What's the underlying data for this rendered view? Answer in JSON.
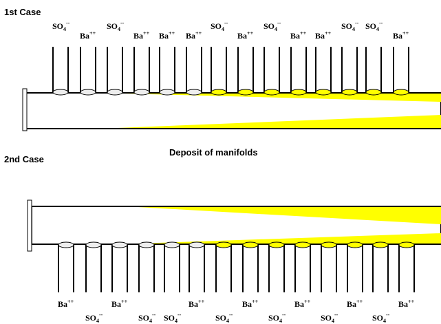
{
  "top_case": {
    "label": "1st Case",
    "ions": [
      {
        "base": "SO",
        "sub": "4",
        "charge": "--"
      },
      {
        "base": "Ba",
        "charge": "++"
      },
      {
        "base": "SO",
        "sub": "4",
        "charge": "--"
      },
      {
        "base": "Ba",
        "charge": "++"
      },
      {
        "base": "Ba",
        "charge": "++"
      },
      {
        "base": "Ba",
        "charge": "++"
      },
      {
        "base": "SO",
        "sub": "4",
        "charge": "--"
      },
      {
        "base": "Ba",
        "charge": "++"
      },
      {
        "base": "SO",
        "sub": "4",
        "charge": "--"
      },
      {
        "base": "Ba",
        "charge": "++"
      },
      {
        "base": "Ba",
        "charge": "++"
      },
      {
        "base": "SO",
        "sub": "4",
        "charge": "--"
      },
      {
        "base": "SO",
        "sub": "4",
        "charge": "--"
      },
      {
        "base": "Ba",
        "charge": "++"
      }
    ]
  },
  "caption": "Deposit of manifolds",
  "bottom_case": {
    "label": "2nd Case",
    "ions": [
      {
        "base": "Ba",
        "charge": "++"
      },
      {
        "base": "SO",
        "sub": "4",
        "charge": "--"
      },
      {
        "base": "Ba",
        "charge": "++"
      },
      {
        "base": "SO",
        "sub": "4",
        "charge": "--"
      },
      {
        "base": "SO",
        "sub": "4",
        "charge": "--"
      },
      {
        "base": "Ba",
        "charge": "++"
      },
      {
        "base": "SO",
        "sub": "4",
        "charge": "--"
      },
      {
        "base": "Ba",
        "charge": "++"
      },
      {
        "base": "SO",
        "sub": "4",
        "charge": "--"
      },
      {
        "base": "Ba",
        "charge": "++"
      },
      {
        "base": "SO",
        "sub": "4",
        "charge": "--"
      },
      {
        "base": "Ba",
        "charge": "++"
      },
      {
        "base": "SO",
        "sub": "4",
        "charge": "--"
      },
      {
        "base": "Ba",
        "charge": "++"
      }
    ]
  }
}
